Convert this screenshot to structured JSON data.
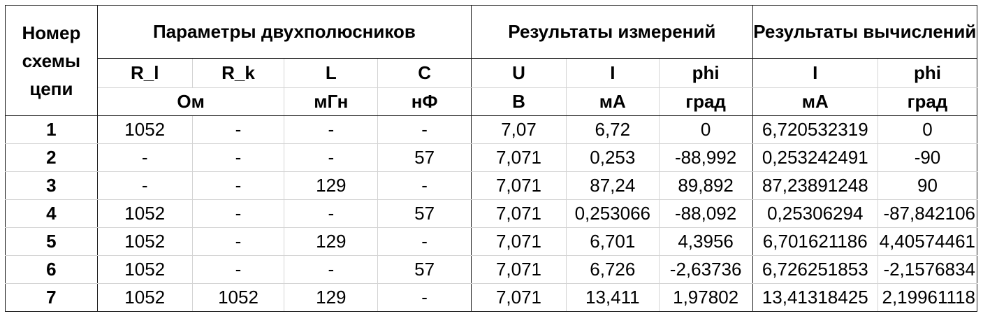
{
  "table": {
    "header": {
      "scheme_number": [
        "Номер",
        "схемы",
        "цепи"
      ],
      "groups": {
        "params": "Параметры двухполюсников",
        "measured": "Результаты измерений",
        "computed": "Результаты вычислений"
      },
      "symbols": {
        "r_l": "R_l",
        "r_k": "R_k",
        "l": "L",
        "c": "C",
        "u": "U",
        "i_meas": "I",
        "phi_meas": "phi",
        "i_calc": "I",
        "phi_calc": "phi"
      },
      "units": {
        "r": "Ом",
        "l": "мГн",
        "c": "нФ",
        "u": "В",
        "i_meas": "мА",
        "phi_meas": "град",
        "i_calc": "мА",
        "phi_calc": "град"
      }
    },
    "rows": [
      {
        "n": "1",
        "r_l": "1052",
        "r_k": "-",
        "l": "-",
        "c": "-",
        "u": "7,07",
        "i": "6,72",
        "phi": "0",
        "i_calc": "6,720532319",
        "phi_calc": "0"
      },
      {
        "n": "2",
        "r_l": "-",
        "r_k": "-",
        "l": "-",
        "c": "57",
        "u": "7,071",
        "i": "0,253",
        "phi": "-88,992",
        "i_calc": "0,253242491",
        "phi_calc": "-90"
      },
      {
        "n": "3",
        "r_l": "-",
        "r_k": "-",
        "l": "129",
        "c": "-",
        "u": "7,071",
        "i": "87,24",
        "phi": "89,892",
        "i_calc": "87,23891248",
        "phi_calc": "90"
      },
      {
        "n": "4",
        "r_l": "1052",
        "r_k": "-",
        "l": "-",
        "c": "57",
        "u": "7,071",
        "i": "0,253066",
        "phi": "-88,092",
        "i_calc": "0,25306294",
        "phi_calc": "-87,842106"
      },
      {
        "n": "5",
        "r_l": "1052",
        "r_k": "-",
        "l": "129",
        "c": "-",
        "u": "7,071",
        "i": "6,701",
        "phi": "4,3956",
        "i_calc": "6,701621186",
        "phi_calc": "4,40574461"
      },
      {
        "n": "6",
        "r_l": "1052",
        "r_k": "-",
        "l": "-",
        "c": "57",
        "u": "7,071",
        "i": "6,726",
        "phi": "-2,63736",
        "i_calc": "6,726251853",
        "phi_calc": "-2,1576834"
      },
      {
        "n": "7",
        "r_l": "1052",
        "r_k": "1052",
        "l": "129",
        "c": "-",
        "u": "7,071",
        "i": "13,411",
        "phi": "1,97802",
        "i_calc": "13,41318425",
        "phi_calc": "2,19961118"
      }
    ]
  }
}
